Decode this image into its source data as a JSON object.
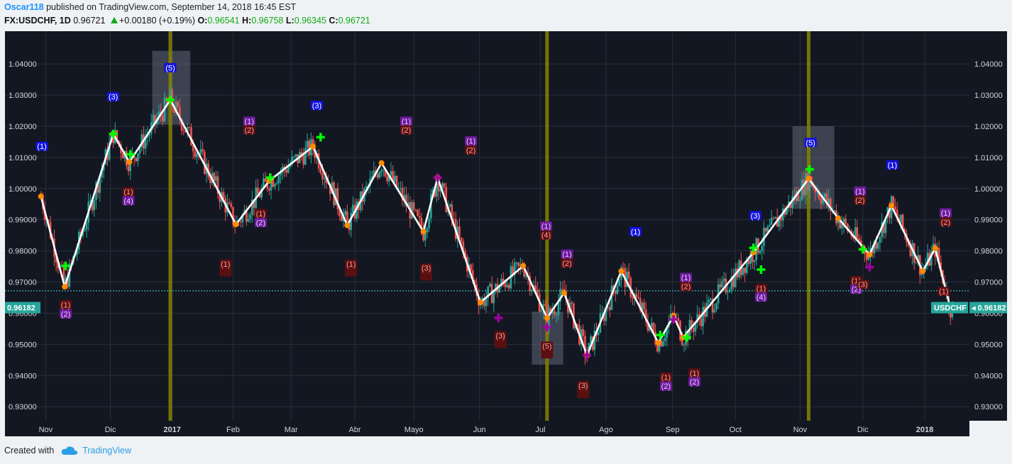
{
  "header": {
    "author": "Oscar118",
    "published_text": "published on TradingView.com, September 14, 2018 16:45 EST",
    "symbol": "FX:USDCHF, 1D",
    "last": "0.96721",
    "change": "+0.00180 (+0.19%)",
    "o_label": "O:",
    "o_value": "0.96541",
    "h_label": "H:",
    "h_value": "0.96758",
    "l_label": "L:",
    "l_value": "0.96345",
    "c_label": "C:",
    "c_value": "0.96721"
  },
  "footer": {
    "created_with": "Created with",
    "brand": "TradingView"
  },
  "colors": {
    "bg": "#131722",
    "up": "#26a69a",
    "down": "#ef5350",
    "zigzag": "#ffffff",
    "vline": "#808000",
    "label_blue": "#1010e0",
    "label_purple": "#6a1b9a",
    "label_darkred": "#5a1010",
    "orange_dot": "#ff8c00",
    "green_cross": "#00ff00",
    "purple_cross": "#a000a0"
  },
  "chart_data": {
    "type": "candlestick",
    "symbol": "USDCHF",
    "ylim": [
      0.9255,
      1.0505
    ],
    "y_ticks": [
      0.93,
      0.94,
      0.95,
      0.96,
      0.97,
      0.98,
      0.99,
      1.0,
      1.01,
      1.02,
      1.03,
      1.04
    ],
    "y_tick_labels": [
      "0.93000",
      "0.94000",
      "0.95000",
      "0.96000",
      "0.97000",
      "0.98000",
      "0.99000",
      "1.00000",
      "1.01000",
      "1.02000",
      "1.03000",
      "1.04000"
    ],
    "x_ticks": [
      {
        "label": "Nov",
        "t": 0.5
      },
      {
        "label": "Dic",
        "t": 7.3
      },
      {
        "label": "2017",
        "t": 13.8
      },
      {
        "label": "Feb",
        "t": 20.2
      },
      {
        "label": "Mar",
        "t": 26.3
      },
      {
        "label": "Abr",
        "t": 33
      },
      {
        "label": "Mayo",
        "t": 39.2
      },
      {
        "label": "Jun",
        "t": 46.1
      },
      {
        "label": "Jul",
        "t": 52.5
      },
      {
        "label": "Ago",
        "t": 59.4
      },
      {
        "label": "Sep",
        "t": 66.4
      },
      {
        "label": "Oct",
        "t": 73
      },
      {
        "label": "Nov",
        "t": 79.8
      },
      {
        "label": "Dic",
        "t": 86.4
      },
      {
        "label": "2018",
        "t": 92.9
      }
    ],
    "t_range": [
      -0.2,
      97.6
    ],
    "price_tag": "0.96182",
    "symbol_tag": "USDCHF",
    "current_line": 0.9672,
    "vlines": [
      13.6,
      53.2,
      80.7
    ],
    "zigzag": [
      [
        0,
        0.9975
      ],
      [
        2.5,
        0.9685
      ],
      [
        7.6,
        1.0175
      ],
      [
        9.3,
        1.0085
      ],
      [
        13.6,
        1.0285
      ],
      [
        20.5,
        0.9885
      ],
      [
        24,
        1.0025
      ],
      [
        28.6,
        1.0135
      ],
      [
        32.2,
        0.9882
      ],
      [
        35.8,
        1.0082
      ],
      [
        40.2,
        0.9862
      ],
      [
        41.7,
        1.0035
      ],
      [
        46.2,
        0.9635
      ],
      [
        50.7,
        0.9752
      ],
      [
        53.2,
        0.9585
      ],
      [
        55,
        0.9665
      ],
      [
        57.4,
        0.9465
      ],
      [
        61,
        0.9735
      ],
      [
        64.9,
        0.9505
      ],
      [
        66.5,
        0.9592
      ],
      [
        67.5,
        0.9522
      ],
      [
        74.9,
        0.9795
      ],
      [
        80.7,
        1.0032
      ],
      [
        83.8,
        0.9905
      ],
      [
        87.1,
        0.9788
      ],
      [
        89.4,
        0.9945
      ],
      [
        92.7,
        0.9735
      ],
      [
        94,
        0.9808
      ],
      [
        95.6,
        0.9618
      ]
    ],
    "shaded_boxes": [
      {
        "t0": 11.7,
        "t1": 15.7,
        "p0": 1.0205,
        "p1": 1.0442
      },
      {
        "t0": 51.6,
        "t1": 54.9,
        "p0": 0.9435,
        "p1": 0.9605
      },
      {
        "t0": 79,
        "t1": 83.4,
        "p0": 0.9935,
        "p1": 1.02
      }
    ],
    "labels": [
      {
        "t": 0.1,
        "p": 1.0136,
        "text": "(1)",
        "style": "blue"
      },
      {
        "t": 7.6,
        "p": 1.0295,
        "text": "(3)",
        "style": "blue"
      },
      {
        "t": 13.6,
        "p": 1.0388,
        "text": "(5)",
        "style": "blue"
      },
      {
        "t": 29,
        "p": 1.0267,
        "text": "(3)",
        "style": "blue"
      },
      {
        "t": 62.5,
        "p": 0.9862,
        "text": "(1)",
        "style": "blue"
      },
      {
        "t": 75.1,
        "p": 0.9913,
        "text": "(3)",
        "style": "blue"
      },
      {
        "t": 80.9,
        "p": 1.0148,
        "text": "(5)",
        "style": "blue"
      },
      {
        "t": 89.5,
        "p": 1.0076,
        "text": "(1)",
        "style": "blue"
      },
      {
        "t": 9.2,
        "p": 0.999,
        "text": "(1)",
        "style": "darkred"
      },
      {
        "t": 9.2,
        "p": 0.9961,
        "text": "(4)",
        "style": "purple"
      },
      {
        "t": 2.6,
        "p": 0.9627,
        "text": "(1)",
        "style": "darkred"
      },
      {
        "t": 2.6,
        "p": 0.9598,
        "text": "(2)",
        "style": "purple"
      },
      {
        "t": 21.9,
        "p": 1.0216,
        "text": "(1)",
        "style": "purple"
      },
      {
        "t": 21.9,
        "p": 1.0188,
        "text": "(2)",
        "style": "darkred"
      },
      {
        "t": 23.1,
        "p": 0.992,
        "text": "(1)",
        "style": "darkred"
      },
      {
        "t": 23.1,
        "p": 0.9891,
        "text": "(2)",
        "style": "purple"
      },
      {
        "t": 38.4,
        "p": 1.0216,
        "text": "(1)",
        "style": "purple"
      },
      {
        "t": 38.4,
        "p": 1.0188,
        "text": "(2)",
        "style": "darkred"
      },
      {
        "t": 45.2,
        "p": 1.0153,
        "text": "(1)",
        "style": "purple"
      },
      {
        "t": 45.2,
        "p": 1.0124,
        "text": "(2)",
        "style": "darkred"
      },
      {
        "t": 53.1,
        "p": 0.988,
        "text": "(1)",
        "style": "purple"
      },
      {
        "t": 53.1,
        "p": 0.9851,
        "text": "(4)",
        "style": "darkred"
      },
      {
        "t": 55.3,
        "p": 0.979,
        "text": "(1)",
        "style": "purple"
      },
      {
        "t": 55.3,
        "p": 0.9761,
        "text": "(2)",
        "style": "darkred"
      },
      {
        "t": 67.8,
        "p": 0.9715,
        "text": "(1)",
        "style": "purple"
      },
      {
        "t": 67.8,
        "p": 0.9686,
        "text": "(2)",
        "style": "darkred"
      },
      {
        "t": 86.1,
        "p": 0.9992,
        "text": "(1)",
        "style": "purple"
      },
      {
        "t": 86.1,
        "p": 0.9963,
        "text": "(2)",
        "style": "darkred"
      },
      {
        "t": 95.1,
        "p": 0.9922,
        "text": "(1)",
        "style": "purple"
      },
      {
        "t": 95.1,
        "p": 0.9893,
        "text": "(2)",
        "style": "darkred"
      },
      {
        "t": 65.7,
        "p": 0.9395,
        "text": "(1)",
        "style": "darkred"
      },
      {
        "t": 65.7,
        "p": 0.9366,
        "text": "(2)",
        "style": "purple"
      },
      {
        "t": 68.7,
        "p": 0.9408,
        "text": "(1)",
        "style": "darkred"
      },
      {
        "t": 68.7,
        "p": 0.938,
        "text": "(2)",
        "style": "purple"
      },
      {
        "t": 75.7,
        "p": 0.968,
        "text": "(1)",
        "style": "darkred"
      },
      {
        "t": 75.7,
        "p": 0.9652,
        "text": "(4)",
        "style": "purple"
      },
      {
        "t": 85.7,
        "p": 0.9705,
        "text": "(1)",
        "style": "darkred"
      },
      {
        "t": 85.7,
        "p": 0.9677,
        "text": "(2)",
        "style": "purple"
      },
      {
        "t": 86.4,
        "p": 0.9693,
        "text": "(3)",
        "style": "darkred"
      },
      {
        "t": 94.9,
        "p": 0.967,
        "text": "(1)",
        "style": "darkred"
      },
      {
        "t": 19.4,
        "p": 0.9745,
        "text": "(1)",
        "style": "darkred_box"
      },
      {
        "t": 32.6,
        "p": 0.9745,
        "text": "(1)",
        "style": "darkred_box"
      },
      {
        "t": 40.5,
        "p": 0.9732,
        "text": "(3)",
        "style": "darkred_box"
      },
      {
        "t": 48.3,
        "p": 0.9515,
        "text": "(3)",
        "style": "darkred_box"
      },
      {
        "t": 53.2,
        "p": 0.9482,
        "text": "(5)",
        "style": "darkred_box"
      },
      {
        "t": 57,
        "p": 0.9355,
        "text": "(3)",
        "style": "darkred_box"
      }
    ],
    "green_crosses": [
      [
        2.6,
        0.9752
      ],
      [
        7.6,
        1.0175
      ],
      [
        9.4,
        1.011
      ],
      [
        13.6,
        1.0285
      ],
      [
        24.1,
        1.0035
      ],
      [
        29.4,
        1.0165
      ],
      [
        65.1,
        0.953
      ],
      [
        67.9,
        0.9522
      ],
      [
        74.9,
        0.981
      ],
      [
        75.7,
        0.974
      ],
      [
        80.8,
        1.0062
      ],
      [
        86.4,
        0.9805
      ]
    ],
    "purple_crosses": [
      [
        48.1,
        0.9585
      ],
      [
        53.2,
        0.9555
      ],
      [
        87.1,
        0.9748
      ],
      [
        41.7,
        1.0035
      ],
      [
        57.4,
        0.9465
      ],
      [
        66.5,
        0.958
      ]
    ]
  }
}
